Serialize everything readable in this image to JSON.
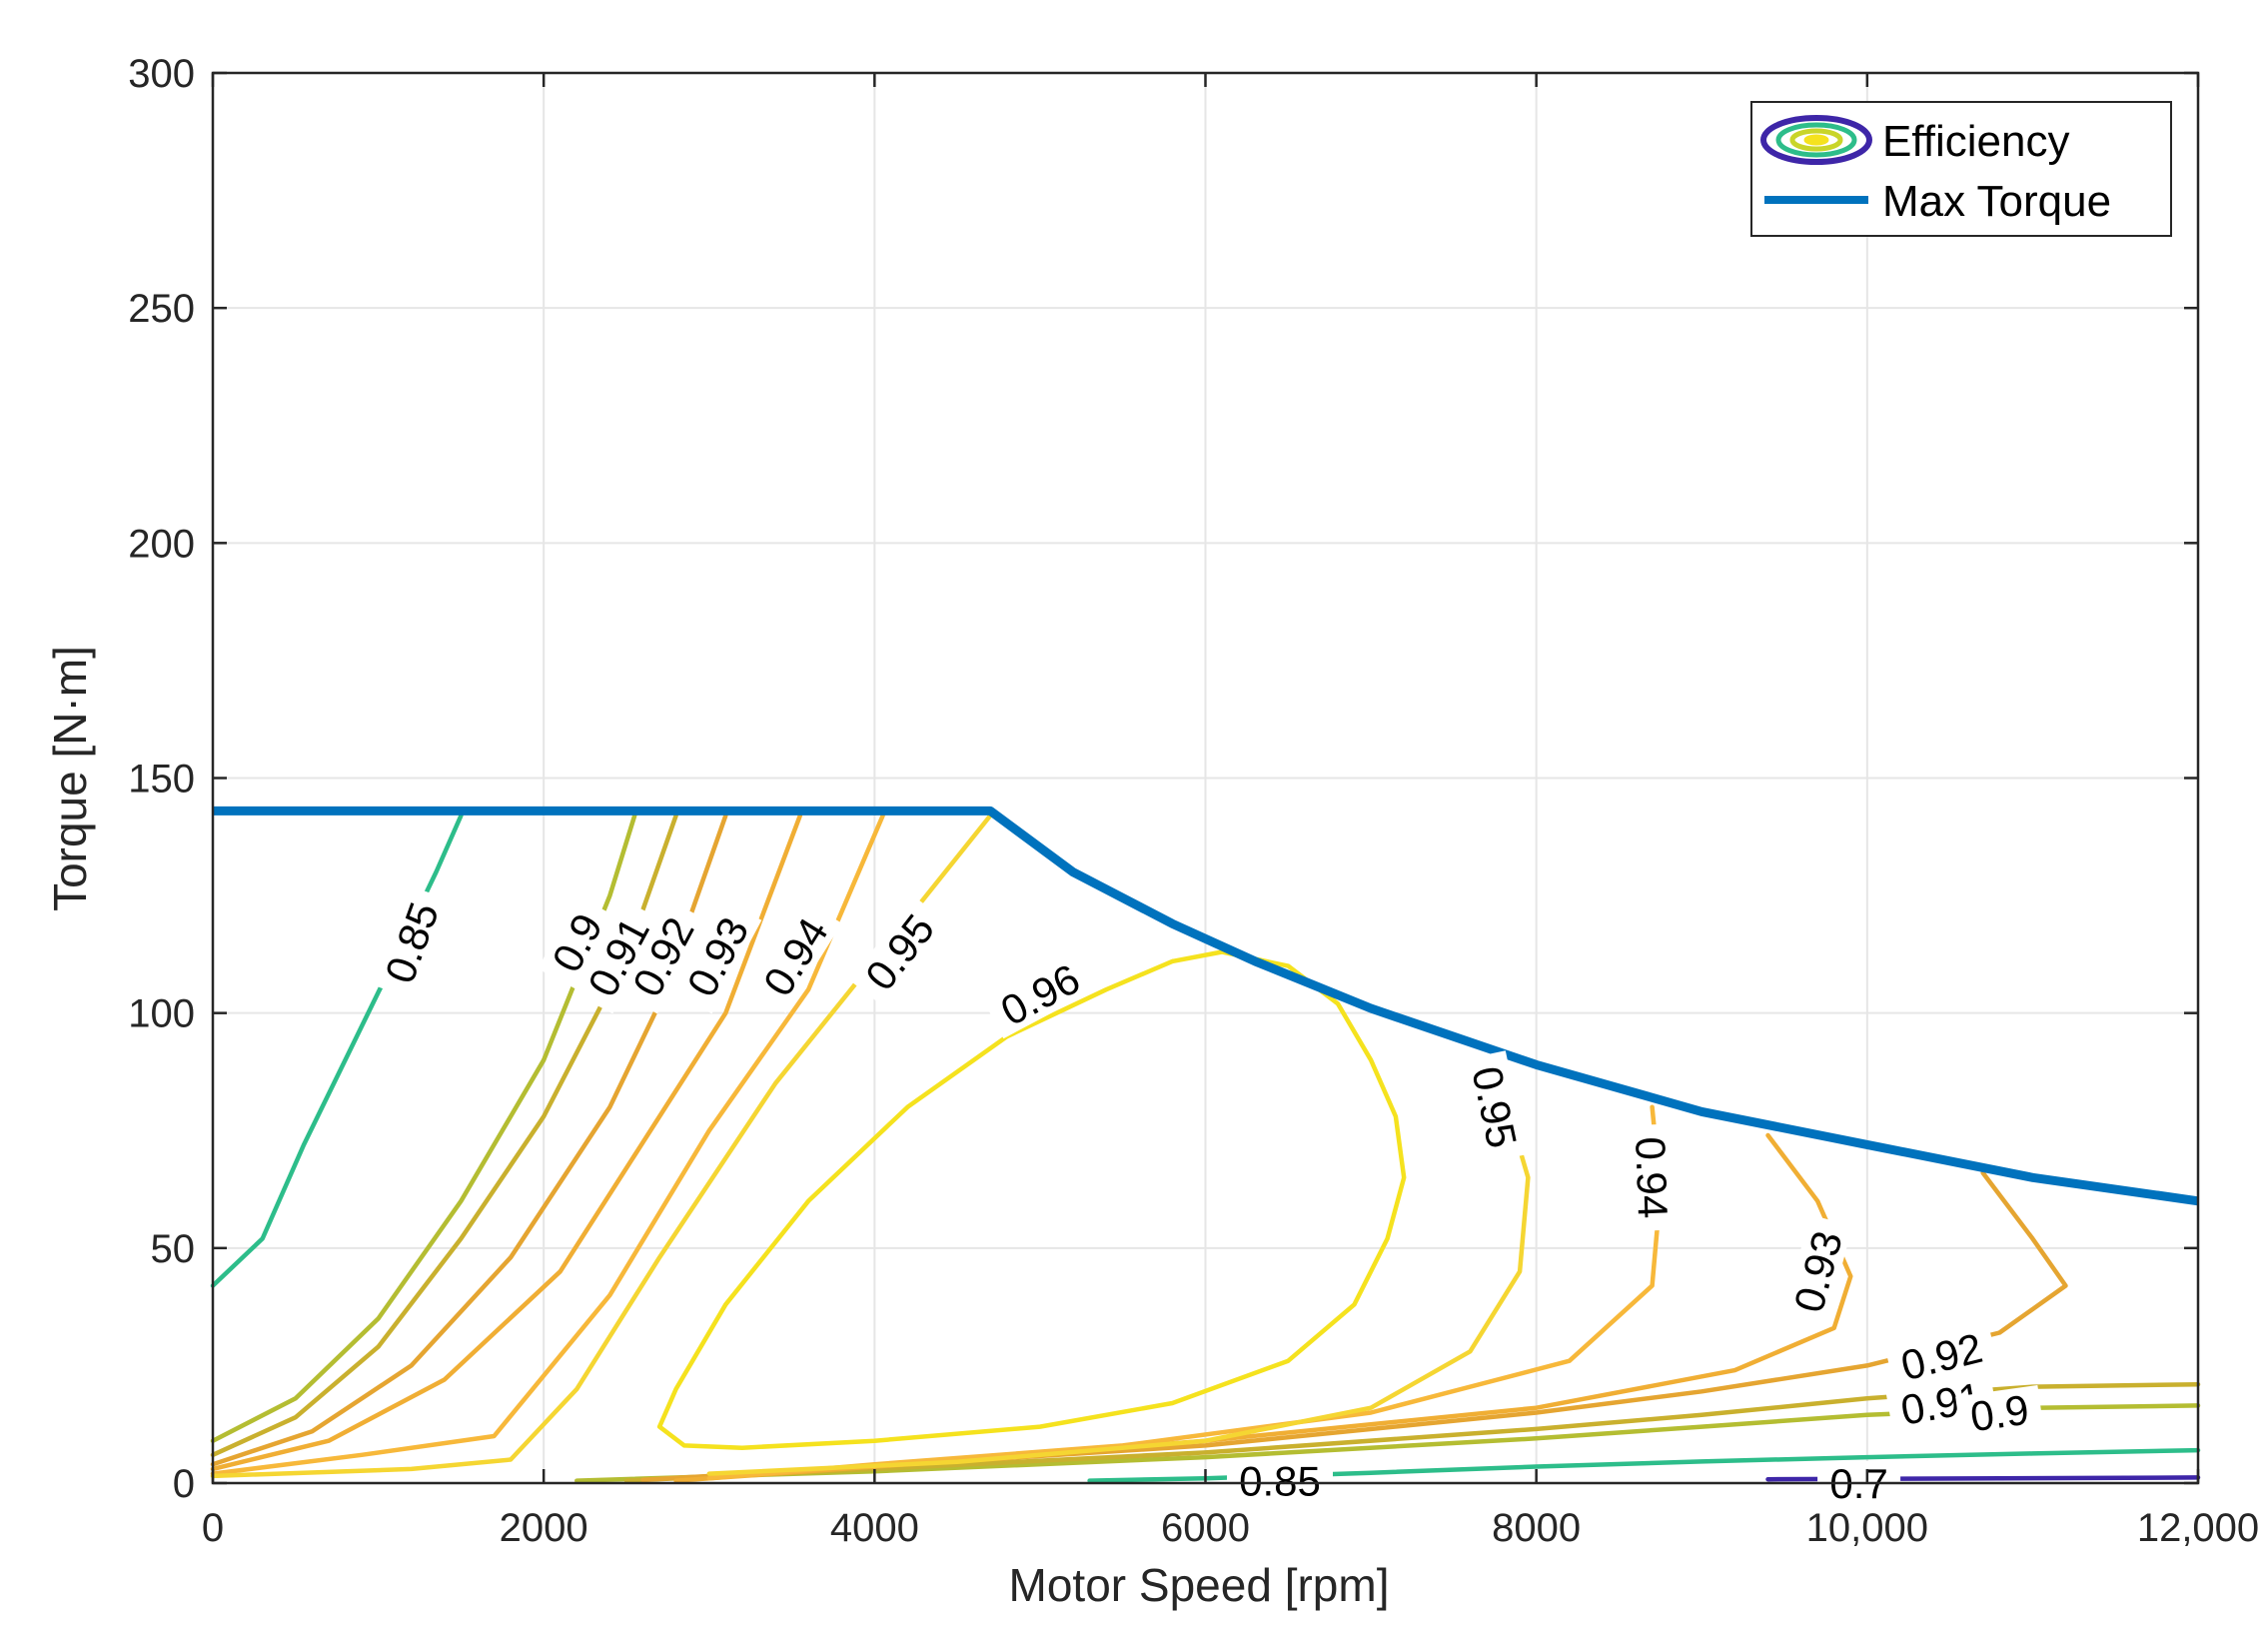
{
  "chart_data": {
    "type": "contour",
    "title": "",
    "xlabel": "Motor Speed [rpm]",
    "ylabel": "Torque [N·m]",
    "xlim": [
      0,
      12000
    ],
    "ylim": [
      0,
      300
    ],
    "grid": true,
    "x_ticks": [
      {
        "value": 0,
        "label": "0"
      },
      {
        "value": 2000,
        "label": "2000"
      },
      {
        "value": 4000,
        "label": "4000"
      },
      {
        "value": 6000,
        "label": "6000"
      },
      {
        "value": 8000,
        "label": "8000"
      },
      {
        "value": 10000,
        "label": "10,000"
      },
      {
        "value": 12000,
        "label": "12,000"
      }
    ],
    "y_ticks": [
      {
        "value": 0,
        "label": "0"
      },
      {
        "value": 50,
        "label": "50"
      },
      {
        "value": 100,
        "label": "100"
      },
      {
        "value": 150,
        "label": "150"
      },
      {
        "value": 200,
        "label": "200"
      },
      {
        "value": 250,
        "label": "250"
      },
      {
        "value": 300,
        "label": "300"
      }
    ],
    "legend": {
      "position": "top-right",
      "entries": [
        {
          "name": "Efficiency",
          "kind": "contour"
        },
        {
          "name": "Max Torque",
          "kind": "line",
          "color": "#0072BD"
        }
      ]
    },
    "max_torque": {
      "name": "Max Torque",
      "color": "#0072BD",
      "x": [
        0,
        4700,
        5200,
        5800,
        6300,
        7000,
        8000,
        9000,
        10000,
        11000,
        12000
      ],
      "y": [
        143,
        143,
        130,
        119,
        111,
        101,
        89,
        79,
        72,
        65,
        60
      ]
    },
    "contours": [
      {
        "level": "0.85",
        "color": "#2DBD8A",
        "x": [
          0,
          300,
          550,
          800,
          1050,
          1350,
          1500
        ],
        "y": [
          42,
          52,
          72,
          90,
          108,
          130,
          142
        ]
      },
      {
        "level": "0.85",
        "color": "#2DBD8A",
        "x": [
          5300,
          6000,
          7000,
          8000,
          9000,
          10000,
          11000,
          12000
        ],
        "y": [
          0.5,
          1,
          2.2,
          3.5,
          4.6,
          5.5,
          6.3,
          7
        ]
      },
      {
        "level": "0.7",
        "color": "#3E26A8",
        "x": [
          9400,
          12000
        ],
        "y": [
          0.8,
          1.2
        ]
      },
      {
        "level": "0.9",
        "color": "#B4BD32",
        "x": [
          0,
          500,
          1000,
          1500,
          2000,
          2400,
          2550
        ],
        "y": [
          9,
          18,
          35,
          60,
          90,
          125,
          142
        ]
      },
      {
        "level": "0.9",
        "color": "#B4BD32",
        "x": [
          2200,
          4000,
          6000,
          8000,
          9000,
          10000,
          11000,
          12000
        ],
        "y": [
          0.5,
          2.5,
          5.5,
          9.5,
          12,
          14.5,
          16,
          16.5
        ]
      },
      {
        "level": "0.91",
        "color": "#C9B02E",
        "x": [
          0,
          500,
          1000,
          1500,
          2000,
          2500,
          2800
        ],
        "y": [
          6,
          14,
          29,
          52,
          78,
          112,
          142
        ]
      },
      {
        "level": "0.91",
        "color": "#C9B02E",
        "x": [
          2500,
          4000,
          6000,
          8000,
          9000,
          10000,
          11000,
          12000
        ],
        "y": [
          0.5,
          3,
          6.5,
          11.5,
          14.5,
          18,
          20.5,
          21
        ]
      },
      {
        "level": "0.92",
        "color": "#E5A531",
        "x": [
          0,
          600,
          1200,
          1800,
          2400,
          2700,
          3100
        ],
        "y": [
          4,
          11,
          25,
          48,
          80,
          102,
          142
        ]
      },
      {
        "level": "0.92",
        "color": "#E5A531",
        "x": [
          2600,
          4000,
          6000,
          8000,
          9000,
          10000,
          10800,
          11200,
          11000,
          10700
        ],
        "y": [
          0.7,
          3.5,
          8,
          15,
          19.5,
          25,
          32,
          42,
          52,
          66
        ]
      },
      {
        "level": "0.93",
        "color": "#F0AE34",
        "x": [
          0,
          700,
          1400,
          2100,
          2700,
          3100,
          3550
        ],
        "y": [
          3,
          9,
          22,
          45,
          78,
          100,
          142
        ]
      },
      {
        "level": "0.93",
        "color": "#F0AE34",
        "x": [
          2800,
          4000,
          6000,
          8000,
          9200,
          9800,
          9900,
          9700,
          9400
        ],
        "y": [
          0.5,
          3.5,
          9,
          16,
          24,
          33,
          44,
          60,
          74
        ]
      },
      {
        "level": "0.94",
        "color": "#F7B83A",
        "x": [
          0,
          900,
          1700,
          2400,
          3000,
          3600,
          4050
        ],
        "y": [
          2,
          6,
          10,
          40,
          75,
          105,
          142
        ]
      },
      {
        "level": "0.94",
        "color": "#F7B83A",
        "x": [
          3000,
          4000,
          5500,
          7000,
          8200,
          8700,
          8750,
          8700
        ],
        "y": [
          1,
          4,
          8,
          15,
          26,
          42,
          62,
          80
        ]
      },
      {
        "level": "0.95",
        "color": "#F5D632",
        "x": [
          0,
          1200,
          1800,
          2200,
          2700,
          3400,
          4200,
          4700
        ],
        "y": [
          1.5,
          3,
          5,
          20,
          48,
          85,
          120,
          142
        ]
      },
      {
        "level": "0.95",
        "color": "#F5D632",
        "x": [
          3000,
          4500,
          6000,
          7000,
          7600,
          7900,
          7950,
          7800
        ],
        "y": [
          2,
          4.5,
          9,
          16,
          28,
          45,
          65,
          83
        ]
      },
      {
        "level": "0.96",
        "color": "#F5E21E",
        "x": [
          5800,
          5400,
          4800,
          4200,
          3600,
          3100,
          2800,
          2700,
          2850,
          3200,
          4000,
          5000,
          5800,
          6500,
          6900,
          7100,
          7200,
          7150,
          7000,
          6800,
          6500,
          6100,
          5800
        ],
        "y": [
          111,
          105,
          95,
          80,
          60,
          38,
          20,
          12,
          8,
          7.5,
          9,
          12,
          17,
          26,
          38,
          52,
          65,
          78,
          90,
          102,
          110,
          113,
          111
        ]
      }
    ],
    "contour_labels": [
      {
        "text": "0.85",
        "x": 1200,
        "y": 115,
        "angle": -70
      },
      {
        "text": "0.9",
        "x": 2200,
        "y": 115,
        "angle": -62
      },
      {
        "text": "0.91",
        "x": 2450,
        "y": 112,
        "angle": -62
      },
      {
        "text": "0.92",
        "x": 2720,
        "y": 112,
        "angle": -62
      },
      {
        "text": "0.93",
        "x": 3050,
        "y": 112,
        "angle": -62
      },
      {
        "text": "0.94",
        "x": 3520,
        "y": 112,
        "angle": -58
      },
      {
        "text": "0.95",
        "x": 4150,
        "y": 113,
        "angle": -52
      },
      {
        "text": "0.96",
        "x": 5000,
        "y": 104,
        "angle": -28
      },
      {
        "text": "0.95",
        "x": 7750,
        "y": 80,
        "angle": 78
      },
      {
        "text": "0.94",
        "x": 8700,
        "y": 65,
        "angle": 88
      },
      {
        "text": "0.93",
        "x": 9700,
        "y": 45,
        "angle": -75
      },
      {
        "text": "0.92",
        "x": 10450,
        "y": 27,
        "angle": -14
      },
      {
        "text": "0.91",
        "x": 10450,
        "y": 17,
        "angle": -10
      },
      {
        "text": "0.9",
        "x": 10800,
        "y": 15,
        "angle": -8
      },
      {
        "text": "0.85",
        "x": 6450,
        "y": 0.5,
        "angle": 0
      },
      {
        "text": "0.7",
        "x": 9950,
        "y": 0,
        "angle": 0
      }
    ]
  }
}
